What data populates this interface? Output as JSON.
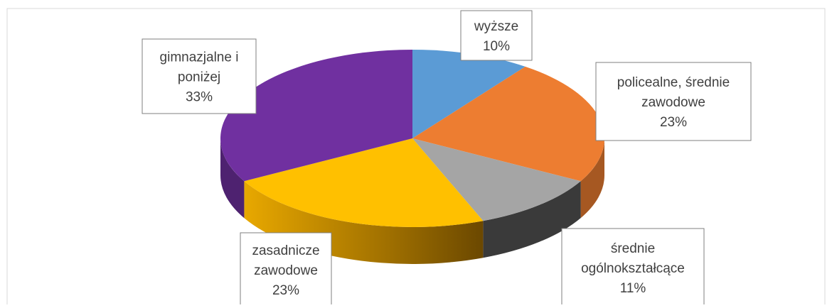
{
  "chart_data": {
    "type": "pie3d",
    "categories": [
      "wyższe",
      "policealne, średnie zawodowe",
      "średnie ogólnokształcące",
      "zasadnicze zawodowe",
      "gimnazjalne i poniżej"
    ],
    "values": [
      10,
      23,
      11,
      23,
      33
    ],
    "value_labels": [
      "10%",
      "23%",
      "11%",
      "23%",
      "33%"
    ],
    "colors": [
      "#5b9bd5",
      "#ed7d31",
      "#a5a5a5",
      "#ffc000",
      "#7030a0"
    ]
  }
}
